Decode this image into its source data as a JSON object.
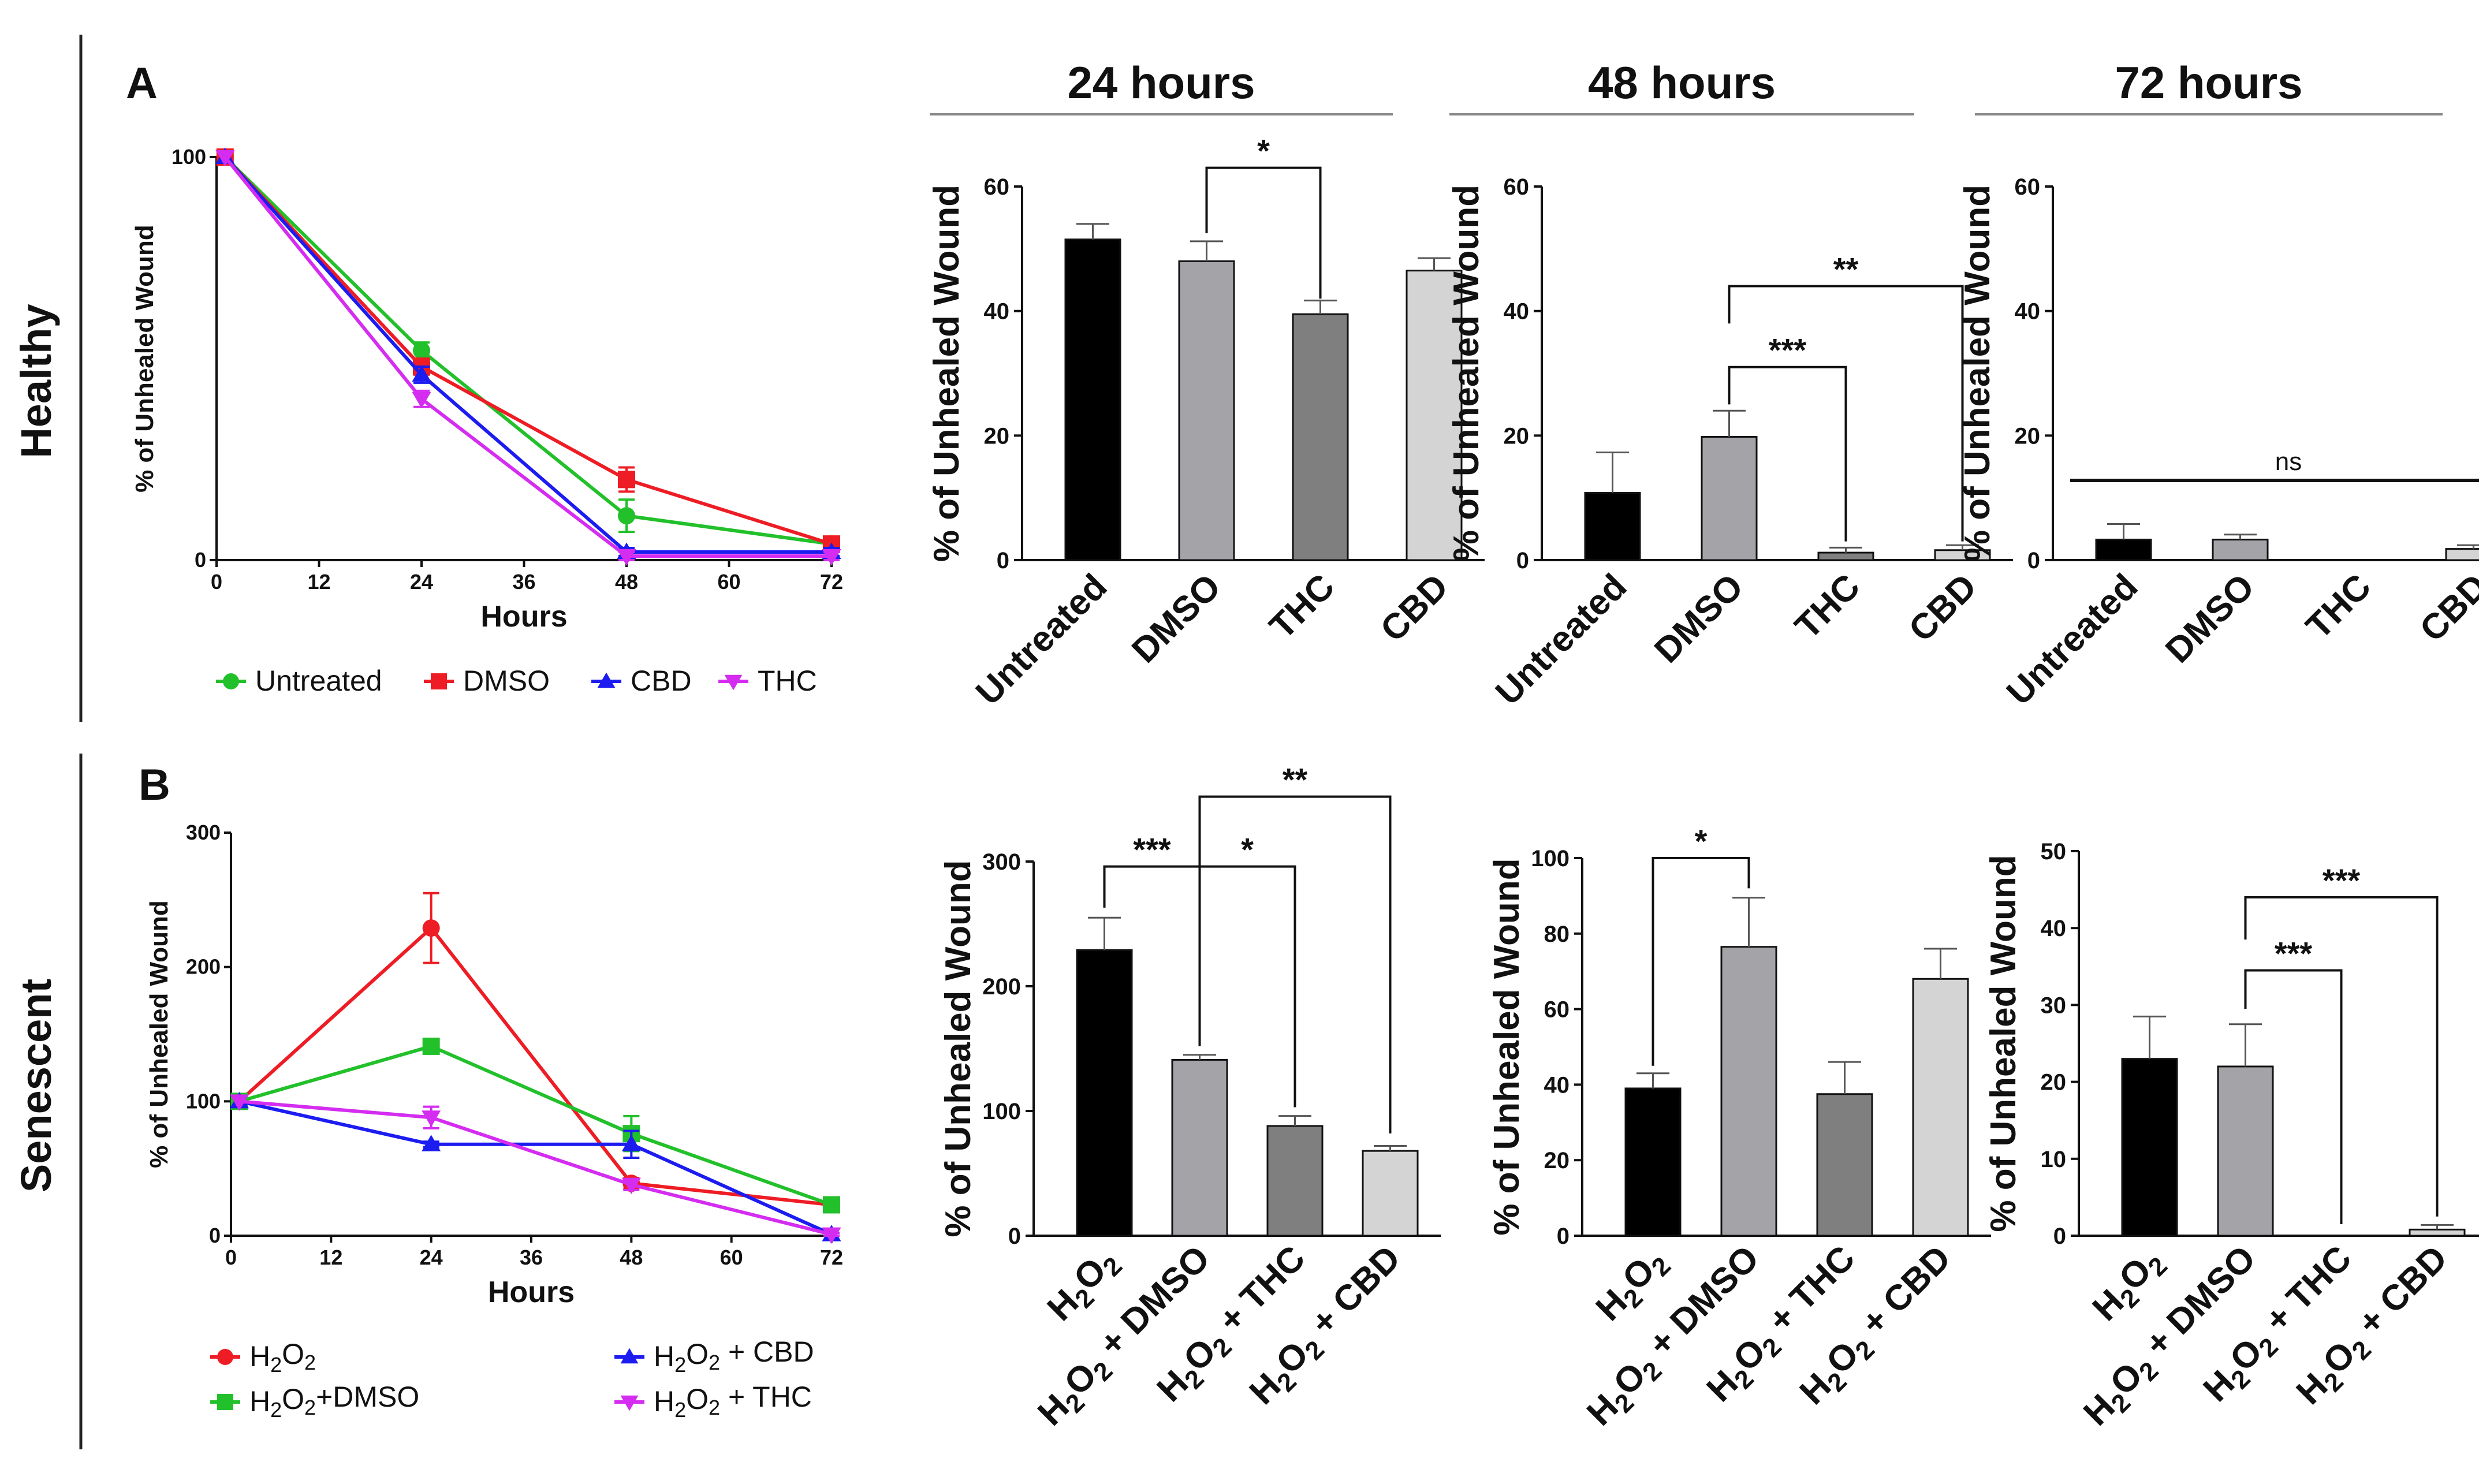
{
  "rows": {
    "healthy": "Healthy",
    "senescent": "Senescent"
  },
  "panels": {
    "a": "A",
    "b": "B"
  },
  "colors": {
    "untreated": "#22c02a",
    "dmso": "#ee1c24",
    "cbd": "#1c1cf0",
    "thc": "#d42cf0",
    "h2o2": "#ee1c24",
    "h2o2_dmso": "#22c02a",
    "h2o2_cbd": "#1c1cf0",
    "h2o2_thc": "#d42cf0",
    "bar_black": "#000000",
    "bar_mid": "#a3a3a8",
    "bar_dark": "#7f7f7f",
    "bar_light": "#d4d4d4"
  },
  "chart_data": [
    {
      "id": "line_healthy",
      "type": "line",
      "xlabel": "Hours",
      "ylabel": "% of Unhealed Wound",
      "xticks": [
        "0",
        "12",
        "24",
        "36",
        "48",
        "60",
        "72"
      ],
      "yticks": [
        "0",
        "100"
      ],
      "xlim": [
        0,
        72
      ],
      "ylim": [
        0,
        100
      ],
      "legend_position": "bottom",
      "series": [
        {
          "name": "Untreated",
          "marker": "circle",
          "x": [
            1,
            24,
            48,
            72
          ],
          "y": [
            100,
            52,
            11,
            4
          ],
          "err": [
            0,
            2,
            4,
            1
          ]
        },
        {
          "name": "DMSO",
          "marker": "square",
          "x": [
            1,
            24,
            48,
            72
          ],
          "y": [
            100,
            48,
            20,
            4
          ],
          "err": [
            0,
            2,
            3,
            1
          ]
        },
        {
          "name": "CBD",
          "marker": "triangle-up",
          "x": [
            1,
            24,
            48,
            72
          ],
          "y": [
            100,
            46,
            2,
            2
          ],
          "err": [
            0,
            2,
            1,
            1
          ]
        },
        {
          "name": "THC",
          "marker": "triangle-down",
          "x": [
            1,
            24,
            48,
            72
          ],
          "y": [
            100,
            40,
            1,
            1
          ],
          "err": [
            0,
            2,
            1,
            1
          ]
        }
      ]
    },
    {
      "id": "line_senescent",
      "type": "line",
      "xlabel": "Hours",
      "ylabel": "% of Unhealed Wound",
      "xticks": [
        "0",
        "12",
        "24",
        "36",
        "48",
        "60",
        "72"
      ],
      "yticks": [
        "0",
        "100",
        "200",
        "300"
      ],
      "xlim": [
        0,
        72
      ],
      "ylim": [
        0,
        300
      ],
      "legend_position": "bottom",
      "series": [
        {
          "name": "H2O2",
          "marker": "circle",
          "x": [
            1,
            24,
            48,
            72
          ],
          "y": [
            100,
            229,
            39,
            23
          ],
          "err": [
            0,
            26,
            4,
            3
          ]
        },
        {
          "name": "H2O2+DMSO",
          "marker": "square",
          "x": [
            1,
            24,
            48,
            72
          ],
          "y": [
            100,
            141,
            76,
            23
          ],
          "err": [
            0,
            4,
            13,
            2
          ]
        },
        {
          "name": "H2O2 + CBD",
          "marker": "triangle-up",
          "x": [
            1,
            24,
            48,
            72
          ],
          "y": [
            100,
            68,
            68,
            1
          ],
          "err": [
            0,
            2,
            10,
            1
          ]
        },
        {
          "name": "H2O2 + THC",
          "marker": "triangle-down",
          "x": [
            1,
            24,
            48,
            72
          ],
          "y": [
            100,
            88,
            38,
            1
          ],
          "err": [
            0,
            8,
            4,
            1
          ]
        }
      ]
    },
    {
      "id": "bar_h24",
      "type": "bar",
      "title": "24 hours",
      "ylabel": "% of Unhealed Wound",
      "ylim": [
        0,
        60
      ],
      "yticks": [
        "0",
        "20",
        "40",
        "60"
      ],
      "categories": [
        "Untreated",
        "DMSO",
        "THC",
        "CBD"
      ],
      "values": [
        51.5,
        48,
        39.5,
        46.5
      ],
      "errors": [
        2.5,
        3.2,
        2.2,
        2
      ],
      "fill_colors": [
        "#000000",
        "#a3a3a8",
        "#7f7f7f",
        "#d4d4d4"
      ],
      "annotations": [
        {
          "from": 1,
          "to": 2,
          "label": "*",
          "level": 63,
          "ends": [
            52.5,
            42
          ]
        }
      ]
    },
    {
      "id": "bar_h48",
      "type": "bar",
      "title": "48 hours",
      "ylabel": "% of Unhealed Wound",
      "ylim": [
        0,
        60
      ],
      "yticks": [
        "0",
        "20",
        "40",
        "60"
      ],
      "categories": [
        "Untreated",
        "DMSO",
        "THC",
        "CBD"
      ],
      "values": [
        10.8,
        19.8,
        1.2,
        1.6
      ],
      "errors": [
        6.5,
        4.2,
        0.8,
        0.8
      ],
      "fill_colors": [
        "#000000",
        "#a3a3a8",
        "#7f7f7f",
        "#d4d4d4"
      ],
      "annotations": [
        {
          "from": 1,
          "to": 2,
          "label": "***",
          "level": 31,
          "ends": [
            25,
            3
          ]
        },
        {
          "from": 1,
          "to": 3,
          "label": "**",
          "level": 44,
          "ends": [
            38,
            3
          ]
        }
      ]
    },
    {
      "id": "bar_h72",
      "type": "bar",
      "title": "72 hours",
      "ylabel": "% of Unhealed Wound",
      "ylim": [
        0,
        60
      ],
      "yticks": [
        "0",
        "20",
        "40",
        "60"
      ],
      "categories": [
        "Untreated",
        "DMSO",
        "THC",
        "CBD"
      ],
      "values": [
        3.3,
        3.3,
        0,
        1.8
      ],
      "errors": [
        2.5,
        0.8,
        0,
        0.6
      ],
      "fill_colors": [
        "#000000",
        "#a3a3a8",
        "#7f7f7f",
        "#d4d4d4"
      ],
      "ns_line": {
        "level": 12.8,
        "label": "ns"
      }
    },
    {
      "id": "bar_s24",
      "type": "bar",
      "ylabel": "% of Unhealed Wound",
      "ylim": [
        0,
        300
      ],
      "yticks": [
        "0",
        "100",
        "200",
        "300"
      ],
      "categories": [
        "H2O2",
        "H2O2 + DMSO",
        "H2O2 + THC",
        "H2O2 + CBD"
      ],
      "values": [
        229,
        141,
        88,
        68
      ],
      "errors": [
        26,
        4,
        8,
        4
      ],
      "fill_colors": [
        "#000000",
        "#a3a3a8",
        "#7f7f7f",
        "#d4d4d4"
      ],
      "annotations": [
        {
          "from": 0,
          "to": 1,
          "label": "***",
          "level": 296,
          "ends": [
            263,
            152
          ]
        },
        {
          "from": 1,
          "to": 2,
          "label": "*",
          "level": 296,
          "ends": [
            152,
            103
          ]
        },
        {
          "from": 1,
          "to": 3,
          "label": "**",
          "level": 352,
          "ends": [
            152,
            82
          ]
        }
      ]
    },
    {
      "id": "bar_s48",
      "type": "bar",
      "ylabel": "% of Unhealed Wound",
      "ylim": [
        0,
        100
      ],
      "yticks": [
        "0",
        "20",
        "40",
        "60",
        "80",
        "100"
      ],
      "categories": [
        "H2O2",
        "H2O2 + DMSO",
        "H2O2 + THC",
        "H2O2 + CBD"
      ],
      "values": [
        39,
        76.5,
        37.5,
        68
      ],
      "errors": [
        4,
        13,
        8.5,
        8
      ],
      "fill_colors": [
        "#000000",
        "#a3a3a8",
        "#7f7f7f",
        "#d4d4d4"
      ],
      "annotations": [
        {
          "from": 0,
          "to": 1,
          "label": "*",
          "level": 100,
          "ends": [
            45,
            92
          ]
        }
      ]
    },
    {
      "id": "bar_s72",
      "type": "bar",
      "ylabel": "% of Unhealed Wound",
      "ylim": [
        0,
        50
      ],
      "yticks": [
        "0",
        "10",
        "20",
        "30",
        "40",
        "50"
      ],
      "categories": [
        "H2O2",
        "H2O2 + DMSO",
        "H2O2 + THC",
        "H2O2 + CBD"
      ],
      "values": [
        23,
        22,
        0,
        0.8
      ],
      "errors": [
        5.5,
        5.5,
        0,
        0.6
      ],
      "fill_colors": [
        "#000000",
        "#a3a3a8",
        "#7f7f7f",
        "#d4d4d4"
      ],
      "annotations": [
        {
          "from": 1,
          "to": 2,
          "label": "***",
          "level": 34.5,
          "ends": [
            29.5,
            1.5
          ]
        },
        {
          "from": 1,
          "to": 3,
          "label": "***",
          "level": 44,
          "ends": [
            38.5,
            2.5
          ]
        }
      ]
    }
  ]
}
